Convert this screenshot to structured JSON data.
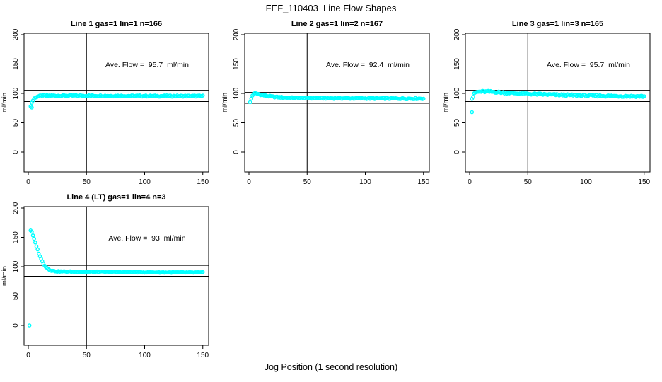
{
  "figure": {
    "title": "FEF_110403  Line Flow Shapes",
    "xlabel": "Jog Position (1 second resolution)",
    "ylabel": "ml/min",
    "point_color": "#00ffff",
    "axis_color": "#000000",
    "background": "#ffffff"
  },
  "chart_data": [
    {
      "type": "scatter",
      "title": "Line 1 gas=1 lin=1 n=166",
      "annotation": "Ave. Flow =  95.7  ml/min",
      "ave_flow_ml_min": 95.7,
      "n": 166,
      "x_ticks": [
        0,
        50,
        100,
        150
      ],
      "y_ticks": [
        0,
        50,
        100,
        150,
        200
      ],
      "xlim": [
        0,
        155
      ],
      "ylim": [
        -35,
        205
      ],
      "vline_x": 50,
      "hlines": [
        105.3,
        86.1
      ],
      "outliers": [
        [
          3,
          76
        ]
      ],
      "profile": [
        [
          2,
          79
        ],
        [
          3,
          84
        ],
        [
          4,
          88
        ],
        [
          5,
          91
        ],
        [
          6,
          93
        ],
        [
          8,
          95
        ],
        [
          12,
          96
        ],
        [
          20,
          96.2
        ],
        [
          40,
          96.2
        ],
        [
          60,
          96
        ],
        [
          80,
          95.8
        ],
        [
          100,
          95.6
        ],
        [
          120,
          95.5
        ],
        [
          150,
          95.5
        ]
      ],
      "band_halfwidth": 1.1
    },
    {
      "type": "scatter",
      "title": "Line 2 gas=1 lin=2 n=167",
      "annotation": "Ave. Flow =  92.4  ml/min",
      "ave_flow_ml_min": 92.4,
      "n": 167,
      "x_ticks": [
        0,
        50,
        100,
        150
      ],
      "y_ticks": [
        0,
        50,
        100,
        150,
        200
      ],
      "xlim": [
        0,
        155
      ],
      "ylim": [
        -35,
        205
      ],
      "vline_x": 50,
      "hlines": [
        101.6,
        83.2
      ],
      "outliers": [
        [
          1,
          85
        ]
      ],
      "profile": [
        [
          2,
          91
        ],
        [
          3,
          96.5
        ],
        [
          4,
          99
        ],
        [
          5,
          99.8
        ],
        [
          7,
          99.5
        ],
        [
          9,
          98.5
        ],
        [
          12,
          97
        ],
        [
          16,
          95.5
        ],
        [
          22,
          94
        ],
        [
          30,
          93
        ],
        [
          40,
          92.3
        ],
        [
          55,
          92
        ],
        [
          75,
          91.7
        ],
        [
          100,
          91.5
        ],
        [
          125,
          91.3
        ],
        [
          150,
          91.2
        ]
      ],
      "band_halfwidth": 1.1
    },
    {
      "type": "scatter",
      "title": "Line 3 gas=1 lin=3 n=165",
      "annotation": "Ave. Flow =  95.7  ml/min",
      "ave_flow_ml_min": 95.7,
      "n": 165,
      "x_ticks": [
        0,
        50,
        100,
        150
      ],
      "y_ticks": [
        0,
        50,
        100,
        150,
        200
      ],
      "xlim": [
        0,
        155
      ],
      "ylim": [
        -35,
        205
      ],
      "vline_x": 50,
      "hlines": [
        105.3,
        86.1
      ],
      "outliers": [
        [
          2,
          68
        ]
      ],
      "profile": [
        [
          2,
          91
        ],
        [
          3,
          94.5
        ],
        [
          4,
          99
        ],
        [
          5,
          101.5
        ],
        [
          7,
          102.5
        ],
        [
          10,
          103
        ],
        [
          15,
          103
        ],
        [
          20,
          102.6
        ],
        [
          28,
          101.5
        ],
        [
          38,
          100.3
        ],
        [
          50,
          99.3
        ],
        [
          62,
          98.4
        ],
        [
          75,
          97.6
        ],
        [
          90,
          96.8
        ],
        [
          105,
          96.2
        ],
        [
          120,
          95.7
        ],
        [
          135,
          95.3
        ],
        [
          150,
          95
        ]
      ],
      "band_halfwidth": 1.5
    },
    {
      "type": "scatter",
      "title": "Line 4 (LT) gas=1 lin=4 n=3",
      "annotation": "Ave. Flow =  93  ml/min",
      "ave_flow_ml_min": 93,
      "n": 3,
      "x_ticks": [
        0,
        50,
        100,
        150
      ],
      "y_ticks": [
        0,
        50,
        100,
        150,
        200
      ],
      "xlim": [
        0,
        155
      ],
      "ylim": [
        -35,
        205
      ],
      "vline_x": 50,
      "hlines": [
        102.3,
        83.7
      ],
      "outliers": [
        [
          1,
          0
        ]
      ],
      "profile": [
        [
          2,
          162
        ],
        [
          3,
          159
        ],
        [
          4,
          153
        ],
        [
          5,
          147
        ],
        [
          6,
          141
        ],
        [
          7,
          135
        ],
        [
          8,
          129
        ],
        [
          9,
          123
        ],
        [
          10,
          118
        ],
        [
          11,
          113
        ],
        [
          12,
          109
        ],
        [
          13,
          105.5
        ],
        [
          14,
          102.5
        ],
        [
          15,
          100
        ],
        [
          16,
          98
        ],
        [
          17,
          96.5
        ],
        [
          18,
          95.2
        ],
        [
          19,
          94.2
        ],
        [
          20,
          93.4
        ],
        [
          22,
          92.6
        ],
        [
          25,
          92
        ],
        [
          30,
          91.7
        ],
        [
          40,
          91.4
        ],
        [
          55,
          91.2
        ],
        [
          70,
          91
        ],
        [
          85,
          90.8
        ],
        [
          100,
          90.6
        ],
        [
          115,
          90.4
        ],
        [
          130,
          90.2
        ],
        [
          150,
          90
        ]
      ],
      "band_halfwidth": 0.8
    }
  ]
}
